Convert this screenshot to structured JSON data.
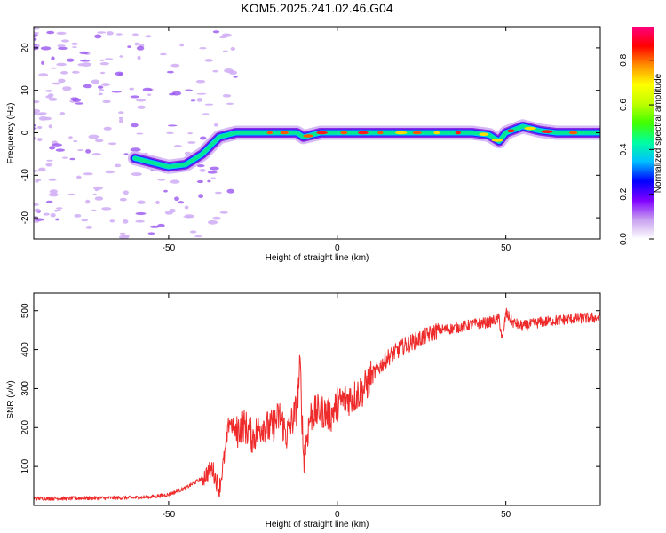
{
  "title": "KOM5.2025.241.02.46.G04",
  "chart_data": [
    {
      "type": "heatmap",
      "name": "spectrogram",
      "xlabel": "Height of straight line (km)",
      "ylabel": "Frequency (Hz)",
      "xlim": [
        -90,
        78
      ],
      "ylim": [
        -25,
        25
      ],
      "xticks": [
        -50,
        0,
        50
      ],
      "xtick_labels": [
        "-50",
        "0",
        "50"
      ],
      "yticks": [
        -20,
        -10,
        0,
        10,
        20
      ],
      "ytick_labels": [
        "-20",
        "-10",
        "0",
        "10",
        "20"
      ],
      "ridge_x": [
        -60,
        -55,
        -50,
        -45,
        -40,
        -35,
        -30,
        -25,
        -20,
        -15,
        -12,
        -10,
        -5,
        0,
        5,
        10,
        15,
        20,
        25,
        30,
        35,
        40,
        45,
        48,
        50,
        55,
        60,
        65,
        70,
        78
      ],
      "ridge_freq": [
        -6,
        -7,
        -8,
        -7.5,
        -5,
        -1,
        0,
        0,
        0,
        0,
        0,
        -1,
        0,
        0,
        0,
        0,
        0,
        0,
        0,
        0,
        0,
        0,
        -0.5,
        -2,
        0,
        1.5,
        0.5,
        0,
        0,
        0
      ],
      "colorbar": {
        "label": "Normalized spectral amplitude",
        "range": [
          0,
          0.95
        ],
        "ticks": [
          0.0,
          0.2,
          0.4,
          0.6,
          0.8
        ],
        "tick_labels": [
          "0.0",
          "0.2",
          "0.4",
          "0.6",
          "0.8"
        ],
        "colors": [
          "#ffffff",
          "#c8a0f0",
          "#8000ff",
          "#0000ff",
          "#00c0ff",
          "#00ffa0",
          "#40ff00",
          "#c0ff00",
          "#ffff00",
          "#ff9000",
          "#ff0000",
          "#ff0080"
        ]
      }
    },
    {
      "type": "line",
      "name": "snr",
      "xlabel": "Height of straight line (km)",
      "ylabel": "SNR (v/v)",
      "xlim": [
        -90,
        78
      ],
      "ylim": [
        0,
        545
      ],
      "xticks": [
        -50,
        0,
        50
      ],
      "xtick_labels": [
        "-50",
        "0",
        "50"
      ],
      "yticks": [
        100,
        200,
        300,
        400,
        500
      ],
      "ytick_labels": [
        "100",
        "200",
        "300",
        "400",
        "500"
      ],
      "color": "#ee2a2a",
      "series": [
        {
          "name": "SNR",
          "x": [
            -90,
            -80,
            -70,
            -60,
            -55,
            -50,
            -45,
            -40,
            -37,
            -35,
            -33,
            -32,
            -30,
            -28,
            -25,
            -22,
            -20,
            -17,
            -15,
            -12,
            -11,
            -10,
            -8,
            -5,
            -2,
            0,
            2,
            5,
            8,
            10,
            15,
            20,
            25,
            30,
            35,
            40,
            45,
            48,
            49,
            50,
            52,
            55,
            60,
            65,
            70,
            78
          ],
          "y": [
            18,
            18,
            19,
            20,
            22,
            28,
            45,
            70,
            95,
            40,
            150,
            220,
            185,
            210,
            175,
            210,
            195,
            230,
            180,
            250,
            360,
            120,
            230,
            245,
            230,
            260,
            270,
            280,
            300,
            330,
            380,
            410,
            430,
            450,
            455,
            465,
            470,
            480,
            420,
            495,
            470,
            460,
            470,
            475,
            480,
            482
          ]
        }
      ]
    }
  ]
}
